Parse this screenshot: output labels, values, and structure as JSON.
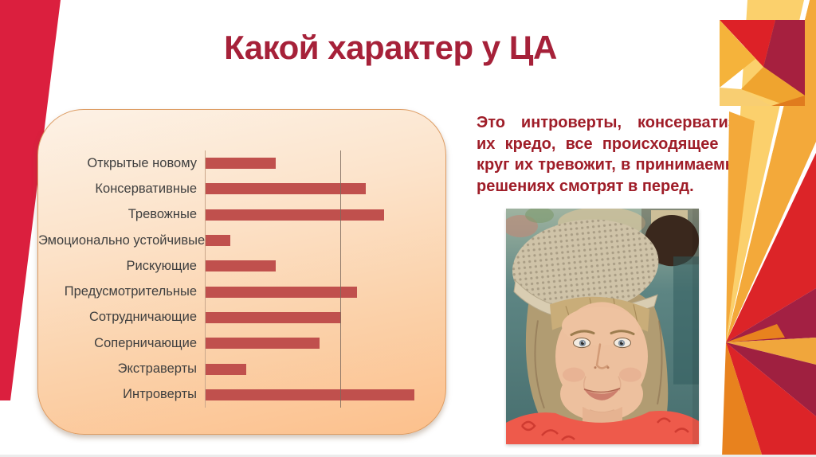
{
  "slide": {
    "title": "Какой характер у ЦА",
    "paragraph": "Это интроверты, консерватизм их кредо, все происходящее во круг их тревожит, в принимаемых решениях смотрят в перед."
  },
  "chart_data": {
    "type": "bar",
    "orientation": "horizontal",
    "title": "",
    "xlabel": "",
    "ylabel": "",
    "categories": [
      "Открытые новому",
      "Консервативные",
      "Тревожные",
      "Эмоционально устойчивые",
      "Рискующие",
      "Предусмотрительные",
      "Сотрудничающие",
      "Соперничающие",
      "Экстраверты",
      "Интроверты"
    ],
    "values": [
      26,
      59,
      66,
      9,
      26,
      56,
      50,
      42,
      15,
      77
    ],
    "xlim": [
      0,
      80
    ],
    "gridline_x": 50,
    "grid": "single vertical gridline",
    "legend": "none",
    "bar_color": "#c0504d"
  },
  "colors": {
    "title_text": "#a62139",
    "body_text": "#9f1d28",
    "bar": "#c0504d",
    "card_top": "#fdf2e6",
    "card_bottom": "#fcc08c",
    "card_border": "#dd9c63",
    "wedge_red": "#db1f3e",
    "deco_red": "#dc2428",
    "deco_crimson": "#a32043",
    "deco_orange": "#e8821e",
    "deco_gold": "#f3a93a",
    "deco_pale_yellow": "#fbd06c"
  }
}
